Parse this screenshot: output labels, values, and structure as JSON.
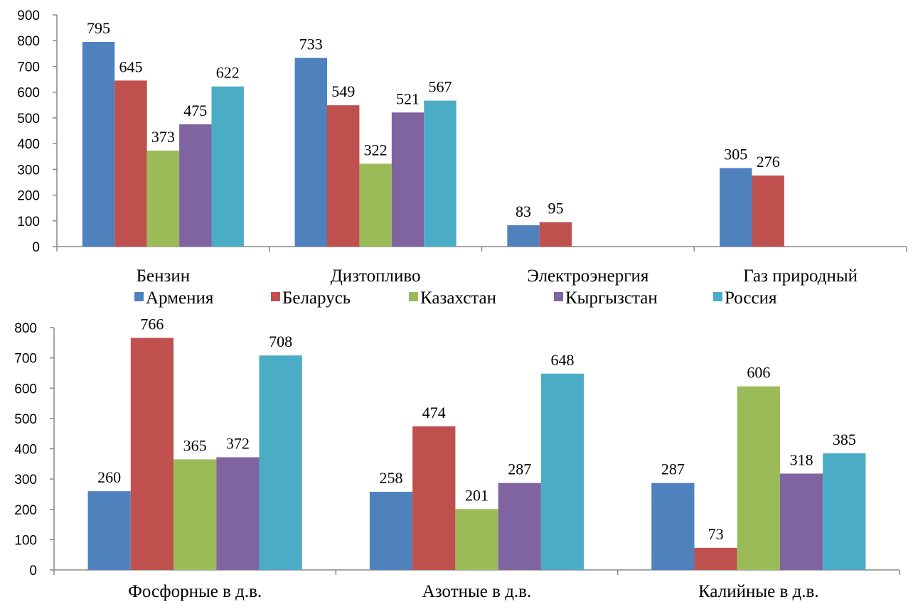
{
  "legend": {
    "entries": [
      "Армения",
      "Беларусь",
      "Казахстан",
      "Кыргызстан",
      "Россия"
    ],
    "colors": [
      "#4F81BD",
      "#C0504D",
      "#9BBB59",
      "#8064A2",
      "#4BACC6"
    ],
    "placement": "between-charts"
  },
  "chart_data": [
    {
      "type": "bar",
      "title": "",
      "xlabel": "",
      "ylabel": "",
      "categories": [
        "Бензин",
        "Дизтопливо",
        "Электроэнергия",
        "Газ природный"
      ],
      "series": [
        {
          "name": "Армения",
          "values": [
            795,
            733,
            83,
            305
          ]
        },
        {
          "name": "Беларусь",
          "values": [
            645,
            549,
            95,
            276
          ]
        },
        {
          "name": "Казахстан",
          "values": [
            373,
            322,
            null,
            null
          ]
        },
        {
          "name": "Кыргызстан",
          "values": [
            475,
            521,
            null,
            null
          ]
        },
        {
          "name": "Россия",
          "values": [
            622,
            567,
            null,
            null
          ]
        }
      ],
      "ylim": [
        0,
        900
      ],
      "yticks": [
        0,
        100,
        200,
        300,
        400,
        500,
        600,
        700,
        800,
        900
      ],
      "grid": false,
      "data_labels": true
    },
    {
      "type": "bar",
      "title": "",
      "xlabel": "",
      "ylabel": "",
      "categories": [
        "Фосфорные в д.в.",
        "Азотные в д.в.",
        "Калийные в д.в."
      ],
      "series": [
        {
          "name": "Армения",
          "values": [
            260,
            258,
            287
          ]
        },
        {
          "name": "Беларусь",
          "values": [
            766,
            474,
            73
          ]
        },
        {
          "name": "Казахстан",
          "values": [
            365,
            201,
            606
          ]
        },
        {
          "name": "Кыргызстан",
          "values": [
            372,
            287,
            318
          ]
        },
        {
          "name": "Россия",
          "values": [
            708,
            648,
            385
          ]
        }
      ],
      "ylim": [
        0,
        800
      ],
      "yticks": [
        0,
        100,
        200,
        300,
        400,
        500,
        600,
        700,
        800
      ],
      "grid": false,
      "data_labels": true
    }
  ]
}
